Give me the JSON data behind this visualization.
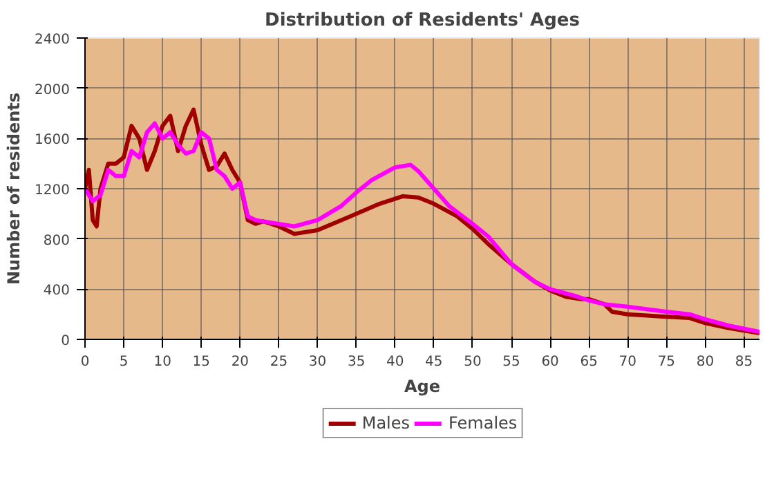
{
  "chart_data": {
    "type": "line",
    "title": "Distribution of Residents' Ages",
    "xlabel": "Age",
    "ylabel": "Number of residents",
    "xlim": [
      0,
      87
    ],
    "xticks": [
      0,
      5,
      10,
      15,
      20,
      25,
      30,
      35,
      40,
      45,
      50,
      55,
      60,
      65,
      70,
      75,
      80,
      85
    ],
    "ylim": [
      0,
      2400
    ],
    "yticks": [
      0,
      400,
      800,
      1200,
      1600,
      2000,
      2400
    ],
    "grid": true,
    "legend": "bottom",
    "marker": "none",
    "line_style": "solid",
    "series": [
      {
        "name": "Males",
        "color": "#a00000",
        "x": [
          0,
          0.5,
          1,
          1.5,
          2,
          3,
          4,
          5,
          6,
          7,
          8,
          9,
          10,
          11,
          12,
          13,
          14,
          15,
          16,
          17,
          18,
          19,
          20,
          21,
          22,
          23,
          25,
          27,
          30,
          35,
          38,
          41,
          43,
          45,
          48,
          50,
          52,
          55,
          58,
          60,
          62,
          64,
          65,
          67,
          68,
          70,
          75,
          78,
          80,
          83,
          87
        ],
        "values": [
          1200,
          1350,
          950,
          900,
          1200,
          1400,
          1400,
          1450,
          1700,
          1600,
          1350,
          1500,
          1700,
          1780,
          1500,
          1700,
          1830,
          1550,
          1350,
          1380,
          1480,
          1350,
          1250,
          950,
          920,
          940,
          900,
          840,
          870,
          1000,
          1080,
          1140,
          1130,
          1080,
          980,
          880,
          760,
          600,
          460,
          390,
          340,
          320,
          320,
          280,
          220,
          200,
          180,
          170,
          130,
          90,
          50
        ]
      },
      {
        "name": "Females",
        "color": "#ff00ff",
        "x": [
          0,
          0.5,
          1,
          2,
          3,
          4,
          5,
          6,
          7,
          8,
          9,
          10,
          11,
          12,
          13,
          14,
          15,
          16,
          17,
          18,
          19,
          20,
          21,
          22,
          25,
          27,
          30,
          33,
          35,
          37,
          40,
          42,
          43,
          45,
          47,
          50,
          52,
          55,
          58,
          60,
          63,
          65,
          67,
          70,
          75,
          78,
          80,
          83,
          87
        ],
        "values": [
          1200,
          1150,
          1100,
          1150,
          1350,
          1300,
          1300,
          1500,
          1450,
          1650,
          1720,
          1600,
          1650,
          1550,
          1480,
          1500,
          1650,
          1600,
          1350,
          1300,
          1200,
          1250,
          980,
          950,
          920,
          900,
          950,
          1060,
          1170,
          1270,
          1370,
          1390,
          1340,
          1200,
          1060,
          920,
          820,
          600,
          460,
          400,
          350,
          310,
          280,
          260,
          220,
          200,
          160,
          110,
          60
        ]
      }
    ]
  }
}
